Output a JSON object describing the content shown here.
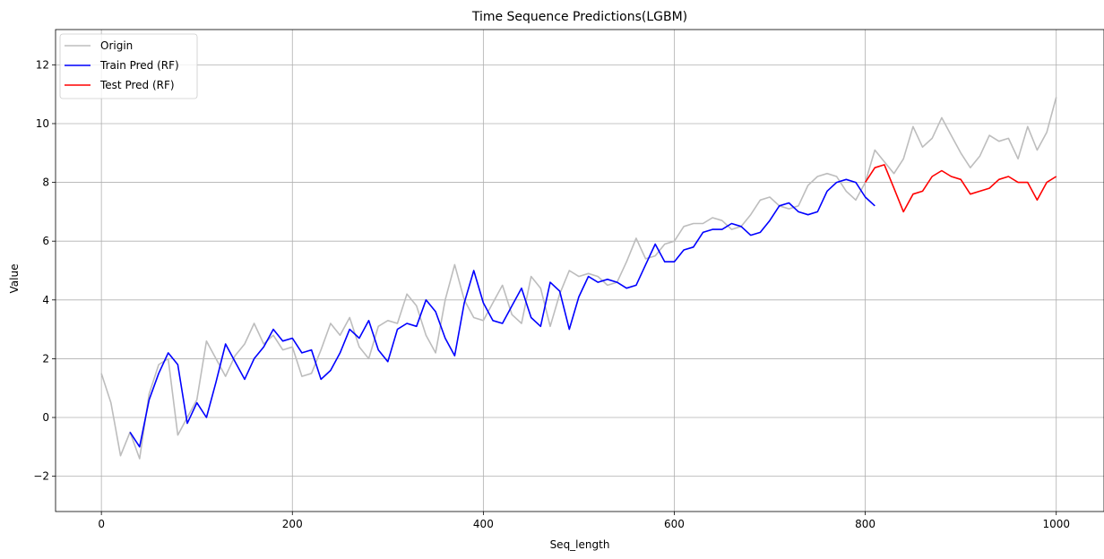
{
  "chart_data": {
    "type": "line",
    "title": "Time Sequence Predictions(LGBM)",
    "xlabel": "Seq_length",
    "ylabel": "Value",
    "xlim": [
      -48,
      1050
    ],
    "ylim": [
      -3.2,
      13.2
    ],
    "xticks": [
      0,
      200,
      400,
      600,
      800,
      1000
    ],
    "xtick_labels": [
      "0",
      "200",
      "400",
      "600",
      "800",
      "1000"
    ],
    "yticks": [
      -2,
      0,
      2,
      4,
      6,
      8,
      10,
      12
    ],
    "ytick_labels": [
      "−2",
      "0",
      "2",
      "4",
      "6",
      "8",
      "10",
      "12"
    ],
    "grid": true,
    "legend_position": "top-left",
    "series": [
      {
        "name": "Origin",
        "color": "#bdbdbd",
        "x_start": 0,
        "x_step": 10,
        "values": [
          1.5,
          0.5,
          -1.3,
          -0.5,
          -1.4,
          0.8,
          1.8,
          2.0,
          -0.6,
          0.0,
          0.6,
          2.6,
          2.0,
          1.4,
          2.1,
          2.5,
          3.2,
          2.5,
          2.8,
          2.3,
          2.4,
          1.4,
          1.5,
          2.3,
          3.2,
          2.8,
          3.4,
          2.4,
          2.0,
          3.1,
          3.3,
          3.2,
          4.2,
          3.8,
          2.8,
          2.2,
          4.0,
          5.2,
          4.0,
          3.4,
          3.3,
          3.9,
          4.5,
          3.5,
          3.2,
          4.8,
          4.4,
          3.1,
          4.2,
          5.0,
          4.8,
          4.9,
          4.8,
          4.5,
          4.6,
          5.3,
          6.1,
          5.4,
          5.5,
          5.9,
          6.0,
          6.5,
          6.6,
          6.6,
          6.8,
          6.7,
          6.4,
          6.5,
          6.9,
          7.4,
          7.5,
          7.2,
          7.1,
          7.2,
          7.9,
          8.2,
          8.3,
          8.2,
          7.7,
          7.4,
          8.0,
          9.1,
          8.7,
          8.3,
          8.8,
          9.9,
          9.2,
          9.5,
          10.2,
          9.6,
          9.0,
          8.5,
          8.9,
          9.6,
          9.4,
          9.5,
          8.8,
          9.9,
          9.1,
          9.7,
          10.9
        ]
      },
      {
        "name": "Train Pred (RF)",
        "color": "#0000ff",
        "x_start": 30,
        "x_step": 10,
        "values": [
          -0.5,
          -1.0,
          0.6,
          1.5,
          2.2,
          1.8,
          -0.2,
          0.5,
          0.0,
          1.2,
          2.5,
          1.9,
          1.3,
          2.0,
          2.4,
          3.0,
          2.6,
          2.7,
          2.2,
          2.3,
          1.3,
          1.6,
          2.2,
          3.0,
          2.7,
          3.3,
          2.3,
          1.9,
          3.0,
          3.2,
          3.1,
          4.0,
          3.6,
          2.7,
          2.1,
          3.9,
          5.0,
          3.9,
          3.3,
          3.2,
          3.8,
          4.4,
          3.4,
          3.1,
          4.6,
          4.3,
          3.0,
          4.1,
          4.8,
          4.6,
          4.7,
          4.6,
          4.4,
          4.5,
          5.2,
          5.9,
          5.3,
          5.3,
          5.7,
          5.8,
          6.3,
          6.4,
          6.4,
          6.6,
          6.5,
          6.2,
          6.3,
          6.7,
          7.2,
          7.3,
          7.0,
          6.9,
          7.0,
          7.7,
          8.0,
          8.1,
          8.0,
          7.5,
          7.2
        ]
      },
      {
        "name": "Test Pred (RF)",
        "color": "#ff0000",
        "x_start": 800,
        "x_step": 10,
        "values": [
          8.0,
          8.5,
          8.6,
          7.8,
          7.0,
          7.6,
          7.7,
          8.2,
          8.4,
          8.2,
          8.1,
          7.6,
          7.7,
          7.8,
          8.1,
          8.2,
          8.0,
          8.0,
          7.4,
          8.0,
          8.2
        ]
      }
    ]
  }
}
